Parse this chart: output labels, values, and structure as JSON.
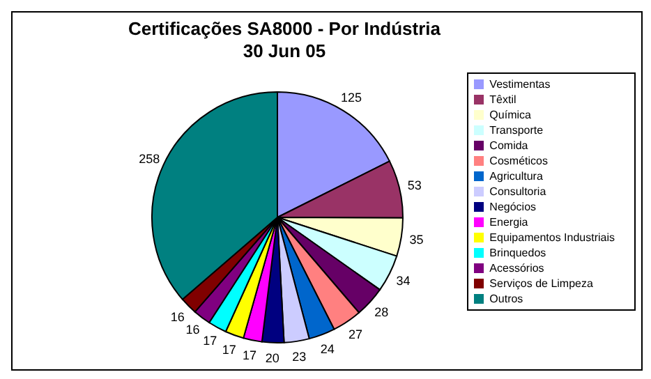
{
  "chart_data": {
    "type": "pie",
    "title": "Certificações SA8000 - Por Indústria",
    "subtitle": "30 Jun 05",
    "categories": [
      "Vestimentas",
      "Têxtil",
      "Química",
      "Transporte",
      "Comida",
      "Cosméticos",
      "Agricultura",
      "Consultoria",
      "Negócios",
      "Energia",
      "Equipamentos Industriais",
      "Brinquedos",
      "Acessórios",
      "Serviços de Limpeza",
      "Outros"
    ],
    "values": [
      125,
      53,
      35,
      34,
      28,
      27,
      24,
      23,
      20,
      17,
      17,
      17,
      16,
      16,
      258
    ],
    "colors": [
      "#9999ff",
      "#993366",
      "#ffffcc",
      "#ccffff",
      "#660066",
      "#ff8080",
      "#0066cc",
      "#ccccff",
      "#000080",
      "#ff00ff",
      "#ffff00",
      "#00ffff",
      "#800080",
      "#800000",
      "#008080"
    ],
    "data_labels": true,
    "legend": "right"
  }
}
